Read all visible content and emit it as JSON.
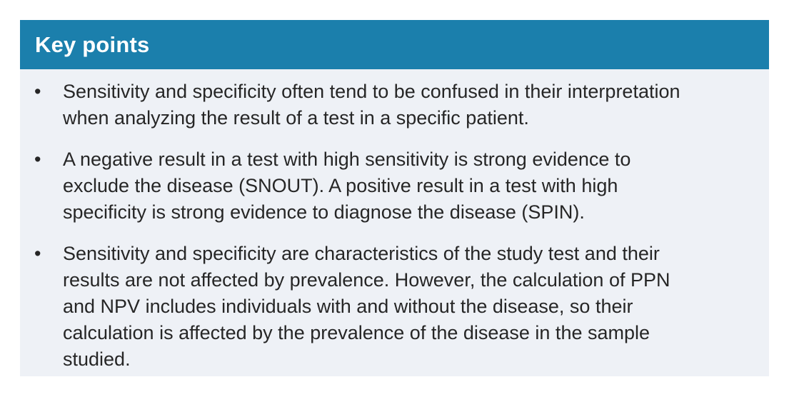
{
  "panel": {
    "title": "Key points",
    "bullet_glyph": "•",
    "colors": {
      "header_bg": "#1b7fac",
      "body_bg": "#eef1f6",
      "title_color": "#ffffff",
      "text_color": "#262626",
      "page_bg": "#ffffff"
    },
    "bullets": [
      {
        "text": "Sensitivity and specificity often tend to be confused in their interpretation when analyzing the result of a test in a specific patient.",
        "lines": [
          "Sensitivity and specificity often tend to be confused in their interpretation",
          "when analyzing the result of a test in a specific patient."
        ]
      },
      {
        "text": "A negative result in a test with high sensitivity is strong evidence to exclude the disease (SNOUT). A positive result in a test with high specificity is strong evidence to diagnose the disease (SPIN).",
        "lines": [
          "A negative result in a test with high sensitivity is strong evidence to",
          "exclude the disease (SNOUT). A positive result in a test with high",
          "specificity is strong evidence to diagnose the disease (SPIN)."
        ]
      },
      {
        "text": "Sensitivity and specificity are characteristics of the study test and their results are not affected by prevalence. However, the calculation of PPN and NPV includes individuals with and without the disease, so their calculation is affected by the prevalence of the disease in the sample studied.",
        "lines": [
          "Sensitivity and specificity are characteristics of the study test and their",
          "results are not affected by prevalence. However, the calculation of PPN",
          "and NPV includes individuals with and without the disease, so their",
          "calculation is affected by the prevalence of the disease in the sample",
          "studied."
        ]
      }
    ]
  }
}
